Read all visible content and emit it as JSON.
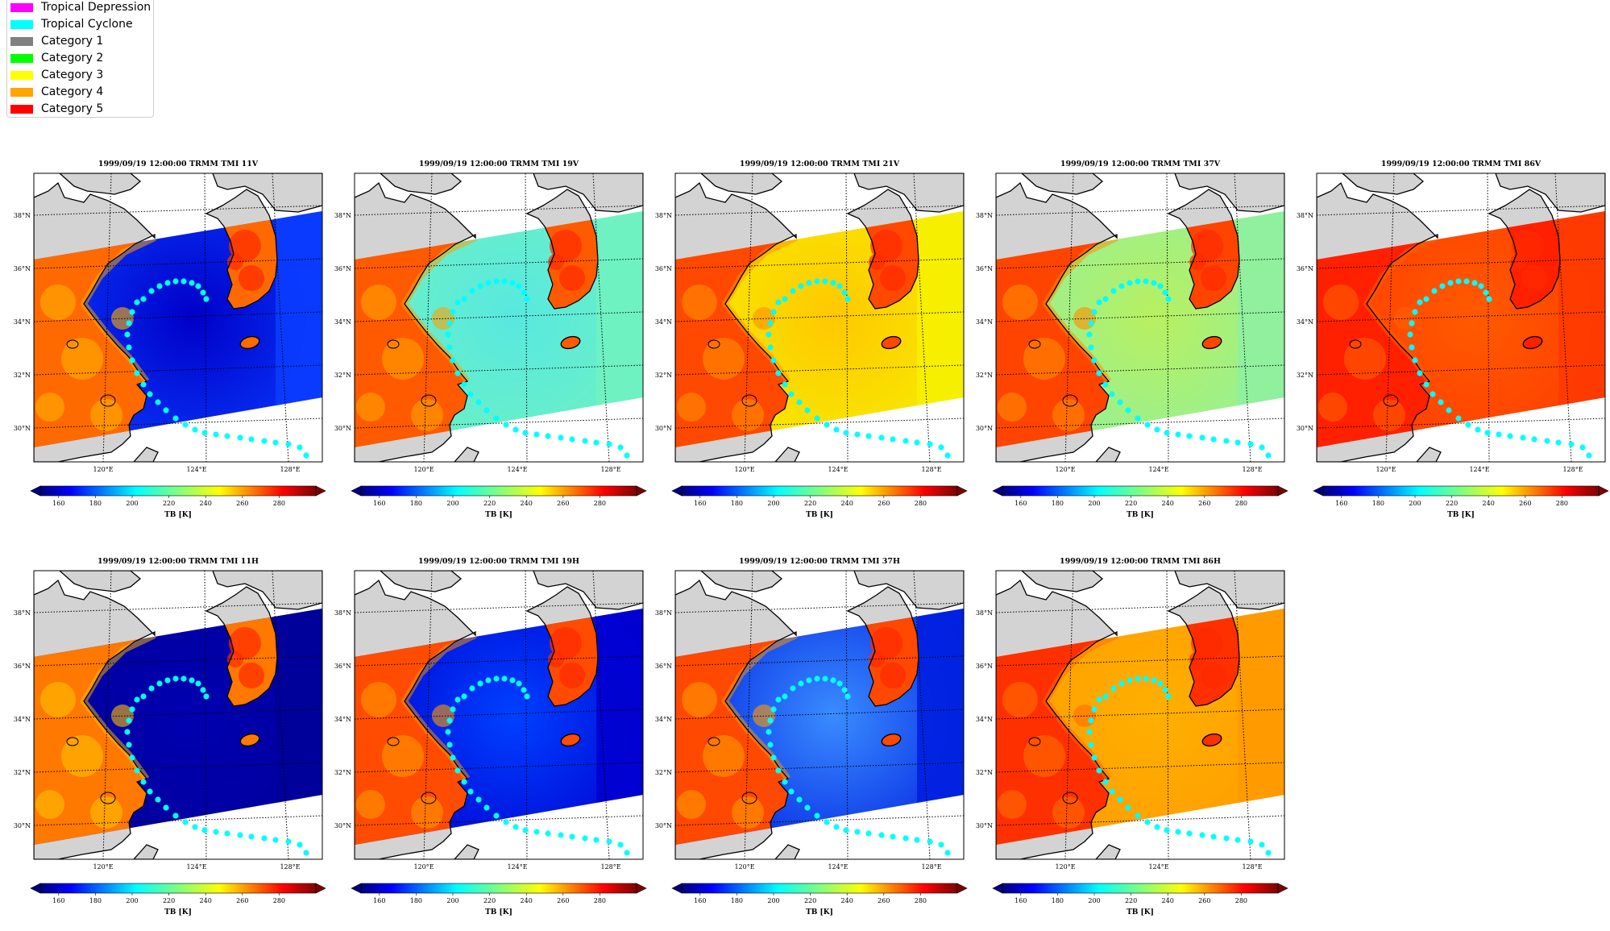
{
  "legend": {
    "items": [
      {
        "label": "Tropical Depression",
        "color": "#ff00ff"
      },
      {
        "label": "Tropical Cyclone",
        "color": "#00ffff"
      },
      {
        "label": "Category 1",
        "color": "#808080"
      },
      {
        "label": "Category 2",
        "color": "#00ff00"
      },
      {
        "label": "Category 3",
        "color": "#ffff00"
      },
      {
        "label": "Category 4",
        "color": "#ffa500"
      },
      {
        "label": "Category 5",
        "color": "#ff0000"
      }
    ]
  },
  "map_axes": {
    "lat_labels": [
      "38°N",
      "36°N",
      "34°N",
      "32°N",
      "30°N"
    ],
    "lon_labels": [
      "120°E",
      "124°E",
      "128°E"
    ]
  },
  "colorbar": {
    "ticks": [
      "160",
      "180",
      "200",
      "220",
      "240",
      "260",
      "280"
    ],
    "label": "TB [K]",
    "range": [
      150,
      300
    ],
    "colormap": "jet",
    "extend": "both"
  },
  "track_color": "#00ffff",
  "panels": [
    {
      "title": "1999/09/19 12:00:00  TRMM TMI 11V",
      "scheme": "v11"
    },
    {
      "title": "1999/09/19 12:00:00  TRMM TMI 19V",
      "scheme": "v19"
    },
    {
      "title": "1999/09/19 12:00:00  TRMM TMI 21V",
      "scheme": "v21"
    },
    {
      "title": "1999/09/19 12:00:00  TRMM TMI 37V",
      "scheme": "v37"
    },
    {
      "title": "1999/09/19 12:00:00  TRMM TMI 86V",
      "scheme": "v86"
    },
    {
      "title": "1999/09/19 12:00:00  TRMM TMI 11H",
      "scheme": "h11"
    },
    {
      "title": "1999/09/19 12:00:00  TRMM TMI 19H",
      "scheme": "h19"
    },
    {
      "title": "1999/09/19 12:00:00  TRMM TMI 37H",
      "scheme": "h37"
    },
    {
      "title": "1999/09/19 12:00:00  TRMM TMI 86H",
      "scheme": "h86"
    }
  ]
}
